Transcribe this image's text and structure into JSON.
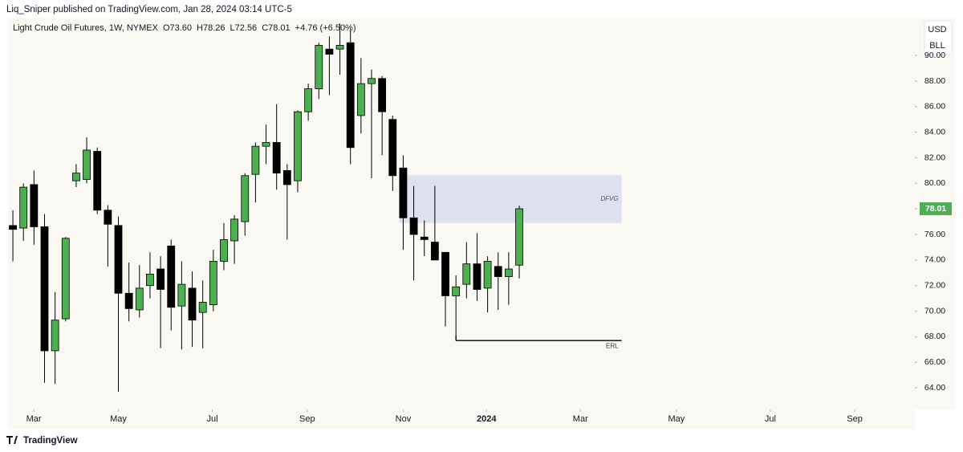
{
  "header": {
    "published": "Liq_Sniper published on TradingView.com, Jan 28, 2024 03:14 UTC-5"
  },
  "footer": {
    "brand": "TradingView"
  },
  "scale_buttons": [
    "USD",
    "BLL"
  ],
  "chart_data": {
    "type": "candlestick",
    "title": "Light Crude Oil Futures, 1W, NYMEX",
    "ohlc_labels": [
      "O73.60",
      "H78.26",
      "L72.56",
      "C78.01"
    ],
    "change": "+4.76 (+6.50%)",
    "up_color": "#4caf50",
    "down_color": "#000000",
    "open": [
      76.7,
      76.5,
      79.9,
      76.6,
      66.9,
      69.4,
      80.2,
      80.3,
      82.5,
      77.9,
      76.7,
      71.4,
      70.1,
      72.0,
      73.3,
      75.1,
      70.4,
      71.8,
      69.9,
      70.5,
      73.9,
      75.5,
      77.0,
      80.7,
      82.9,
      83.2,
      81.0,
      80.2,
      85.6,
      87.4,
      90.5,
      90.5,
      91.0,
      85.3,
      87.8,
      88.2,
      85.0,
      81.2,
      77.3,
      75.8,
      75.4,
      74.6,
      71.2,
      72.1,
      73.7,
      71.8,
      73.5,
      72.7,
      73.6
    ],
    "high": [
      77.9,
      80.0,
      81.0,
      77.6,
      71.5,
      75.8,
      81.5,
      83.6,
      82.8,
      78.3,
      77.4,
      73.8,
      73.6,
      74.6,
      74.3,
      75.6,
      73.9,
      73.1,
      72.4,
      74.8,
      76.9,
      77.5,
      80.8,
      83.2,
      84.6,
      86.2,
      81.5,
      85.7,
      87.8,
      91.0,
      91.5,
      92.5,
      92.0,
      89.8,
      88.9,
      88.4,
      85.3,
      82.2,
      79.8,
      77.1,
      79.8,
      74.6,
      72.8,
      75.4,
      76.1,
      74.3,
      74.6,
      74.6,
      78.26
    ],
    "low": [
      73.9,
      75.5,
      75.2,
      64.4,
      64.3,
      69.2,
      79.7,
      80.0,
      77.6,
      73.5,
      63.7,
      69.2,
      69.5,
      71.0,
      67.1,
      68.5,
      67.0,
      67.2,
      67.1,
      70.0,
      73.2,
      73.7,
      75.9,
      78.5,
      81.5,
      79.5,
      75.6,
      79.3,
      84.9,
      86.6,
      86.9,
      88.5,
      81.5,
      83.9,
      80.4,
      82.2,
      79.4,
      74.8,
      72.4,
      74.3,
      74.0,
      68.8,
      67.7,
      71.0,
      70.8,
      69.9,
      70.1,
      70.5,
      72.56
    ],
    "close": [
      76.4,
      79.7,
      76.6,
      66.9,
      69.3,
      75.7,
      80.8,
      82.6,
      77.9,
      76.8,
      71.4,
      70.2,
      71.8,
      72.9,
      71.7,
      70.3,
      72.1,
      69.3,
      70.7,
      73.9,
      75.6,
      77.2,
      80.6,
      82.9,
      83.2,
      80.8,
      79.9,
      85.6,
      87.4,
      90.8,
      90.1,
      90.8,
      82.8,
      87.8,
      88.2,
      85.6,
      80.6,
      77.3,
      76.0,
      75.6,
      74.0,
      71.2,
      71.9,
      73.7,
      71.7,
      73.9,
      72.7,
      73.3,
      78.01
    ],
    "zones": [
      {
        "label": "DFVG",
        "low": 76.9,
        "high": 80.64,
        "color": "#dde1ee"
      }
    ],
    "levels": [
      {
        "label": "ERL",
        "value": 67.7
      }
    ],
    "xlim": [
      -0.46,
      85.5
    ],
    "xticks": [
      {
        "value": 1.98,
        "label": "Mar"
      },
      {
        "value": 10.0,
        "label": "May"
      },
      {
        "value": 18.9,
        "label": "Jul"
      },
      {
        "value": 27.9,
        "label": "Sep"
      },
      {
        "value": 37.0,
        "label": "Nov"
      },
      {
        "value": 44.9,
        "label": "2024"
      },
      {
        "value": 53.8,
        "label": "Mar"
      },
      {
        "value": 62.9,
        "label": "May"
      },
      {
        "value": 71.8,
        "label": "Jul"
      },
      {
        "value": 79.8,
        "label": "Sep"
      }
    ],
    "ylim": [
      62.31,
      92.96
    ],
    "yticks": [
      {
        "value": 64,
        "label": "64.00"
      },
      {
        "value": 66,
        "label": "66.00"
      },
      {
        "value": 68,
        "label": "68.00"
      },
      {
        "value": 70,
        "label": "70.00"
      },
      {
        "value": 72,
        "label": "72.00"
      },
      {
        "value": 74,
        "label": "74.00"
      },
      {
        "value": 76,
        "label": "76.00"
      },
      {
        "value": 78,
        "label": "78.00"
      },
      {
        "value": 80,
        "label": "80.00"
      },
      {
        "value": 82,
        "label": "82.00"
      },
      {
        "value": 84,
        "label": "84.00"
      },
      {
        "value": 86,
        "label": "86.00"
      },
      {
        "value": 88,
        "label": "88.00"
      },
      {
        "value": 90,
        "label": "90.00"
      }
    ]
  }
}
